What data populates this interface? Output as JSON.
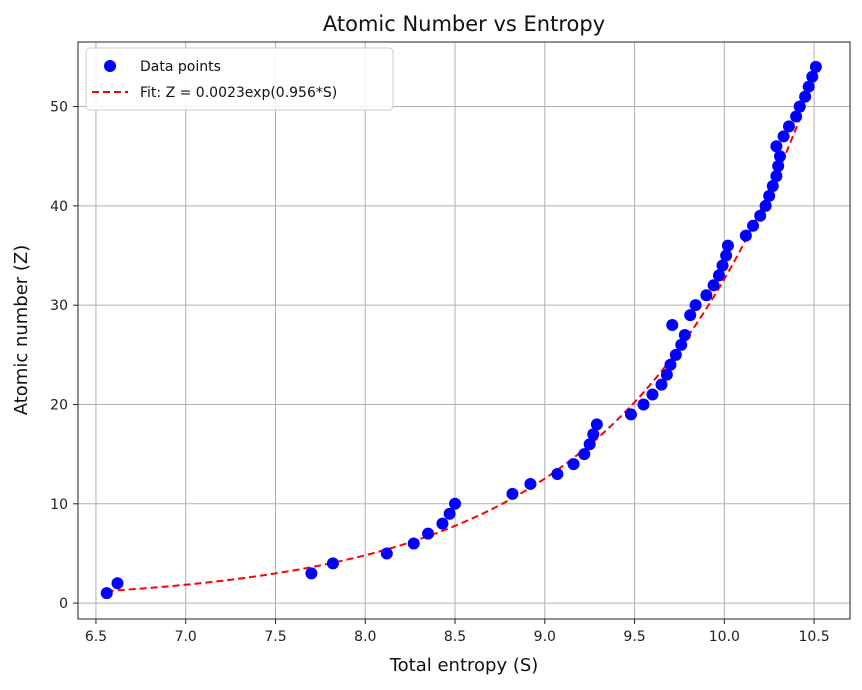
{
  "chart_data": {
    "type": "scatter",
    "title": "Atomic Number vs Entropy",
    "xlabel": "Total entropy (S)",
    "ylabel": "Atomic number (Z)",
    "xlim": [
      6.4,
      10.7
    ],
    "ylim": [
      -1.6,
      56.5
    ],
    "xticks": [
      6.5,
      7.0,
      7.5,
      8.0,
      8.5,
      9.0,
      9.5,
      10.0,
      10.5
    ],
    "xtick_labels": [
      "6.5",
      "7.0",
      "7.5",
      "8.0",
      "8.5",
      "9.0",
      "9.5",
      "10.0",
      "10.5"
    ],
    "yticks": [
      0,
      10,
      20,
      30,
      40,
      50
    ],
    "ytick_labels": [
      "0",
      "10",
      "20",
      "30",
      "40",
      "50"
    ],
    "grid": true,
    "legend": {
      "placement": "top-left",
      "entries": [
        "Data points",
        "Fit: Z = 0.0023exp(0.956*S)"
      ]
    },
    "series": [
      {
        "name": "Data points",
        "kind": "scatter",
        "color": "#0000ff",
        "points": [
          [
            6.56,
            1
          ],
          [
            6.62,
            2
          ],
          [
            7.7,
            3
          ],
          [
            7.82,
            4
          ],
          [
            8.12,
            5
          ],
          [
            8.27,
            6
          ],
          [
            8.35,
            7
          ],
          [
            8.43,
            8
          ],
          [
            8.47,
            9
          ],
          [
            8.5,
            10
          ],
          [
            8.82,
            11
          ],
          [
            8.92,
            12
          ],
          [
            9.07,
            13
          ],
          [
            9.16,
            14
          ],
          [
            9.22,
            15
          ],
          [
            9.25,
            16
          ],
          [
            9.27,
            17
          ],
          [
            9.29,
            18
          ],
          [
            9.48,
            19
          ],
          [
            9.55,
            20
          ],
          [
            9.6,
            21
          ],
          [
            9.65,
            22
          ],
          [
            9.68,
            23
          ],
          [
            9.7,
            24
          ],
          [
            9.73,
            25
          ],
          [
            9.76,
            26
          ],
          [
            9.78,
            27
          ],
          [
            9.71,
            28
          ],
          [
            9.81,
            29
          ],
          [
            9.84,
            30
          ],
          [
            9.9,
            31
          ],
          [
            9.94,
            32
          ],
          [
            9.97,
            33
          ],
          [
            9.99,
            34
          ],
          [
            10.01,
            35
          ],
          [
            10.02,
            36
          ],
          [
            10.12,
            37
          ],
          [
            10.16,
            38
          ],
          [
            10.2,
            39
          ],
          [
            10.23,
            40
          ],
          [
            10.25,
            41
          ],
          [
            10.27,
            42
          ],
          [
            10.29,
            43
          ],
          [
            10.3,
            44
          ],
          [
            10.31,
            45
          ],
          [
            10.29,
            46
          ],
          [
            10.33,
            47
          ],
          [
            10.36,
            48
          ],
          [
            10.4,
            49
          ],
          [
            10.42,
            50
          ],
          [
            10.45,
            51
          ],
          [
            10.47,
            52
          ],
          [
            10.49,
            53
          ],
          [
            10.51,
            54
          ]
        ]
      },
      {
        "name": "Fit: Z = 0.0023exp(0.956*S)",
        "kind": "line",
        "style": "dashed",
        "color": "#ff0000",
        "a": 0.0023,
        "b": 0.956,
        "x_range": [
          6.56,
          10.51
        ]
      }
    ]
  }
}
